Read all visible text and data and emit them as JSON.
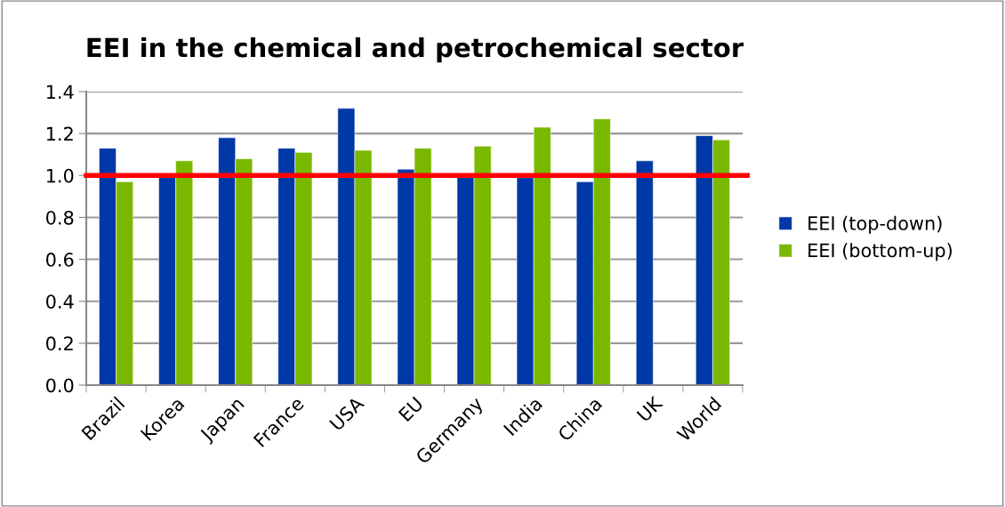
{
  "chart_data": {
    "type": "bar",
    "title": "EEI in the chemical and petrochemical sector",
    "categories": [
      "Brazil",
      "Korea",
      "Japan",
      "France",
      "USA",
      "EU",
      "Germany",
      "India",
      "China",
      "UK",
      "World"
    ],
    "series": [
      {
        "name": "EEI (top-down)",
        "color": "#0038a8",
        "values": [
          1.13,
          1.0,
          1.18,
          1.13,
          1.32,
          1.03,
          1.0,
          0.99,
          0.97,
          1.07,
          1.19
        ]
      },
      {
        "name": "EEI (bottom-up)",
        "color": "#7ab800",
        "values": [
          0.97,
          1.07,
          1.08,
          1.11,
          1.12,
          1.13,
          1.14,
          1.23,
          1.27,
          null,
          1.17
        ]
      }
    ],
    "ylim": [
      0,
      1.4
    ],
    "yticks": [
      {
        "value": 0,
        "label": "0.0"
      },
      {
        "value": 0.2,
        "label": "0.2"
      },
      {
        "value": 0.4,
        "label": "0.4"
      },
      {
        "value": 0.6,
        "label": "0.6"
      },
      {
        "value": 0.8,
        "label": "0.8"
      },
      {
        "value": 1.0,
        "label": "1.0"
      },
      {
        "value": 1.2,
        "label": "1.2"
      },
      {
        "value": 1.4,
        "label": "1.4"
      }
    ],
    "grid": "y",
    "legend": "right",
    "ref_lines": [
      {
        "axis": "y",
        "value": 1.0,
        "color": "#ff0000"
      }
    ]
  }
}
